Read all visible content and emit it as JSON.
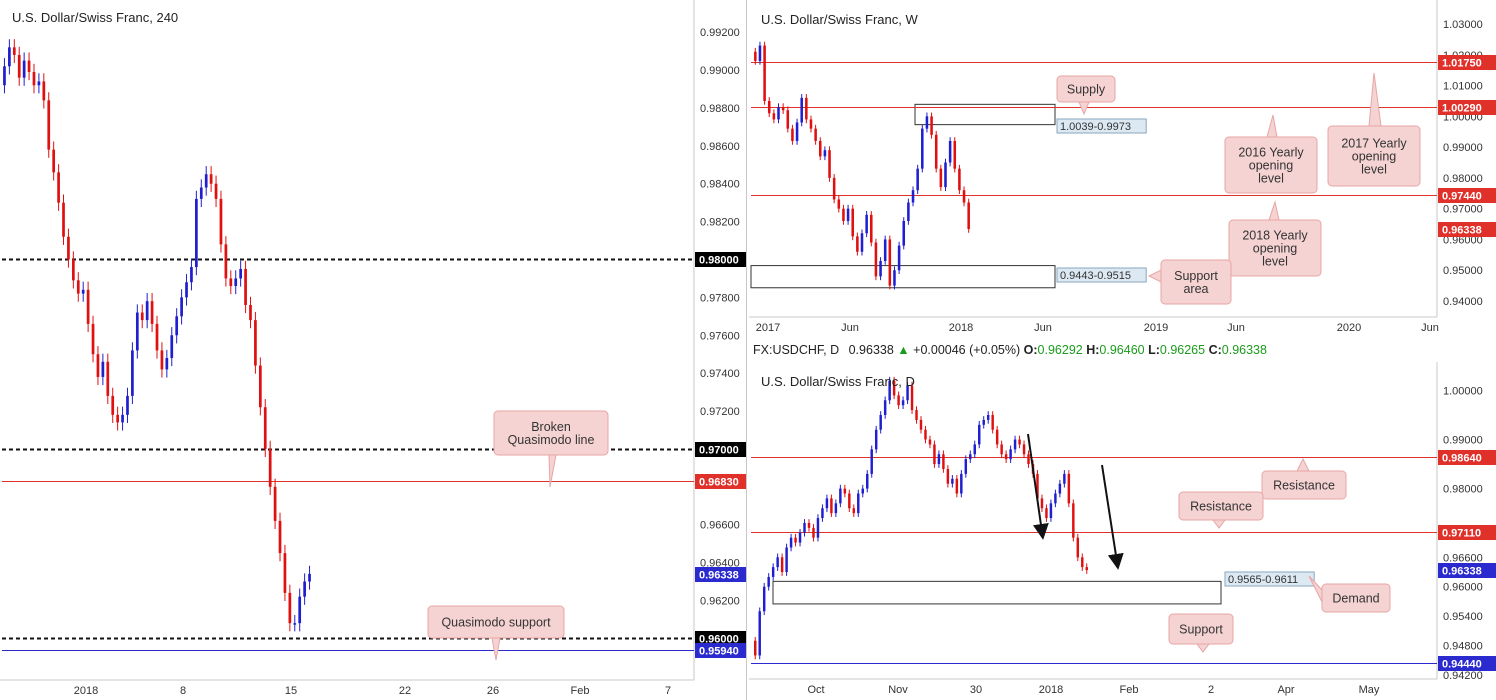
{
  "panels": {
    "h4": {
      "title": "U.S. Dollar/Swiss Franc, 240"
    },
    "weekly": {
      "title": "U.S. Dollar/Swiss Franc, W"
    },
    "daily": {
      "title": "U.S. Dollar/Swiss Franc, D"
    }
  },
  "infobar": {
    "symbol": "FX:USDCHF, D",
    "last": "0.96338",
    "change_arrow": "▲",
    "change": "+0.00046 (+0.05%)",
    "o_label": "O:",
    "o": "0.96292",
    "h_label": "H:",
    "h": "0.96460",
    "l_label": "L:",
    "l": "0.96265",
    "c_label": "C:",
    "c": "0.96338"
  },
  "colors": {
    "up": "#1f1fcf",
    "down": "#e01010",
    "level_red": "#e0302a",
    "level_blue": "#2a2acf",
    "anno_fill": "#f6d3d3",
    "anno_border": "#e8a5a5",
    "box_fill": "#dce9f3"
  },
  "chart_data": [
    {
      "id": "h4",
      "type": "candlestick",
      "title": "U.S. Dollar/Swiss Franc, 240",
      "ylim": [
        0.9578,
        0.9937
      ],
      "y_ticks": [
        "0.99200",
        "0.99000",
        "0.98800",
        "0.98600",
        "0.98400",
        "0.98200",
        "0.97800",
        "0.97600",
        "0.97400",
        "0.97200",
        "0.96600",
        "0.96400",
        "0.96200"
      ],
      "x_ticks": [
        "2018",
        "8",
        "15",
        "22",
        "26",
        "Feb",
        "7"
      ],
      "closes": [
        0.9902,
        0.9912,
        0.9908,
        0.9896,
        0.9905,
        0.9899,
        0.9892,
        0.9894,
        0.9884,
        0.9858,
        0.9846,
        0.983,
        0.9812,
        0.98,
        0.9789,
        0.9782,
        0.9784,
        0.9766,
        0.975,
        0.9738,
        0.9746,
        0.9728,
        0.9718,
        0.9714,
        0.9718,
        0.9728,
        0.9752,
        0.9772,
        0.9768,
        0.9778,
        0.9766,
        0.9752,
        0.9742,
        0.9748,
        0.976,
        0.977,
        0.978,
        0.9788,
        0.9796,
        0.9832,
        0.9838,
        0.9845,
        0.984,
        0.9832,
        0.9808,
        0.979,
        0.9786,
        0.979,
        0.9795,
        0.9776,
        0.9768,
        0.9744,
        0.9722,
        0.97,
        0.968,
        0.9662,
        0.9645,
        0.9624,
        0.9608,
        0.9608,
        0.9622,
        0.963,
        0.9634
      ],
      "levels": [
        {
          "label": "0.98000",
          "value": 0.98,
          "style": "dashed",
          "tag_color": "#000000"
        },
        {
          "label": "0.97000",
          "value": 0.97,
          "style": "dashed",
          "tag_color": "#000000"
        },
        {
          "label": "0.96830",
          "value": 0.9683,
          "style": "solid-red",
          "tag_color": "#e0302a"
        },
        {
          "label": "0.96338",
          "value": 0.96338,
          "style": "price",
          "tag_color": "#2a2acf"
        },
        {
          "label": "0.96000",
          "value": 0.96,
          "style": "dashed",
          "tag_color": "#000000"
        },
        {
          "label": "0.95940",
          "value": 0.9594,
          "style": "solid-blue",
          "tag_color": "#2a2acf"
        }
      ],
      "annotations": [
        {
          "lines": [
            "Broken",
            "Quasimodo line"
          ]
        },
        {
          "lines": [
            "Quasimodo support"
          ]
        }
      ]
    },
    {
      "id": "weekly",
      "type": "candlestick",
      "title": "U.S. Dollar/Swiss Franc, W",
      "ylim": [
        0.9348,
        1.0378
      ],
      "y_ticks": [
        "1.03000",
        "1.02000",
        "1.01000",
        "1.00000",
        "0.99000",
        "0.98000",
        "0.97000",
        "0.96000",
        "0.95000",
        "0.94000"
      ],
      "x_ticks": [
        "2017",
        "Jun",
        "2018",
        "Jun",
        "2019",
        "Jun",
        "2020",
        "Jun"
      ],
      "closes": [
        1.018,
        1.023,
        1.005,
        1.001,
        0.999,
        1.003,
        1.002,
        0.996,
        0.992,
        0.998,
        1.006,
        0.999,
        0.996,
        0.992,
        0.987,
        0.989,
        0.98,
        0.973,
        0.97,
        0.966,
        0.97,
        0.961,
        0.956,
        0.962,
        0.968,
        0.959,
        0.948,
        0.953,
        0.96,
        0.945,
        0.95,
        0.958,
        0.966,
        0.972,
        0.976,
        0.983,
        0.996,
        1.0,
        0.994,
        0.983,
        0.977,
        0.985,
        0.992,
        0.983,
        0.976,
        0.972,
        0.9634
      ],
      "levels": [
        {
          "label": "1.01750",
          "value": 1.0175,
          "style": "solid-red",
          "tag_color": "#e0302a"
        },
        {
          "label": "1.00290",
          "value": 1.0029,
          "style": "solid-red",
          "tag_color": "#e0302a"
        },
        {
          "label": "0.97440",
          "value": 0.9744,
          "style": "solid-red",
          "tag_color": "#e0302a"
        },
        {
          "label": "0.96338",
          "value": 0.96338,
          "style": "price",
          "tag_color": "#e0302a"
        }
      ],
      "zones": [
        {
          "label": "1.0039-0.9973",
          "top": 1.0039,
          "bottom": 0.9973
        },
        {
          "label": "0.9443-0.9515",
          "top": 0.9515,
          "bottom": 0.9443
        }
      ],
      "annotations": [
        {
          "lines": [
            "Supply"
          ]
        },
        {
          "lines": [
            "2016 Yearly",
            "opening",
            "level"
          ]
        },
        {
          "lines": [
            "2017 Yearly",
            "opening",
            "level"
          ]
        },
        {
          "lines": [
            "2018 Yearly",
            "opening",
            "level"
          ]
        },
        {
          "lines": [
            "Support",
            "area"
          ]
        }
      ]
    },
    {
      "id": "daily",
      "type": "candlestick",
      "title": "U.S. Dollar/Swiss Franc, D",
      "ylim": [
        0.9412,
        1.0058
      ],
      "y_ticks": [
        "1.00000",
        "0.99000",
        "0.98000",
        "0.96600",
        "0.96000",
        "0.95400",
        "0.94800",
        "0.94200"
      ],
      "x_ticks": [
        "Oct",
        "Nov",
        "30",
        "2018",
        "Feb",
        "2",
        "Apr",
        "May"
      ],
      "closes": [
        0.946,
        0.955,
        0.96,
        0.962,
        0.964,
        0.966,
        0.963,
        0.968,
        0.97,
        0.969,
        0.971,
        0.973,
        0.972,
        0.97,
        0.974,
        0.976,
        0.978,
        0.975,
        0.977,
        0.98,
        0.979,
        0.976,
        0.975,
        0.979,
        0.98,
        0.983,
        0.988,
        0.992,
        0.995,
        0.998,
        1.002,
        0.999,
        0.997,
        0.998,
        1.001,
        0.996,
        0.994,
        0.992,
        0.99,
        0.989,
        0.985,
        0.987,
        0.984,
        0.981,
        0.982,
        0.979,
        0.983,
        0.986,
        0.987,
        0.989,
        0.993,
        0.994,
        0.995,
        0.992,
        0.989,
        0.987,
        0.986,
        0.988,
        0.99,
        0.989,
        0.987,
        0.985,
        0.983,
        0.978,
        0.976,
        0.974,
        0.977,
        0.979,
        0.981,
        0.983,
        0.977,
        0.97,
        0.966,
        0.964,
        0.9634
      ],
      "levels": [
        {
          "label": "0.98640",
          "value": 0.9864,
          "style": "solid-red",
          "tag_color": "#e0302a"
        },
        {
          "label": "0.97110",
          "value": 0.9711,
          "style": "solid-red",
          "tag_color": "#e0302a"
        },
        {
          "label": "0.96338",
          "value": 0.96338,
          "style": "price",
          "tag_color": "#2a2acf"
        },
        {
          "label": "0.94440",
          "value": 0.9444,
          "style": "solid-blue",
          "tag_color": "#2a2acf"
        }
      ],
      "zones": [
        {
          "label": "0.9565-0.9611",
          "top": 0.9611,
          "bottom": 0.9565
        }
      ],
      "annotations": [
        {
          "lines": [
            "Resistance"
          ]
        },
        {
          "lines": [
            "Resistance"
          ]
        },
        {
          "lines": [
            "Demand"
          ]
        },
        {
          "lines": [
            "Support"
          ]
        }
      ]
    }
  ]
}
